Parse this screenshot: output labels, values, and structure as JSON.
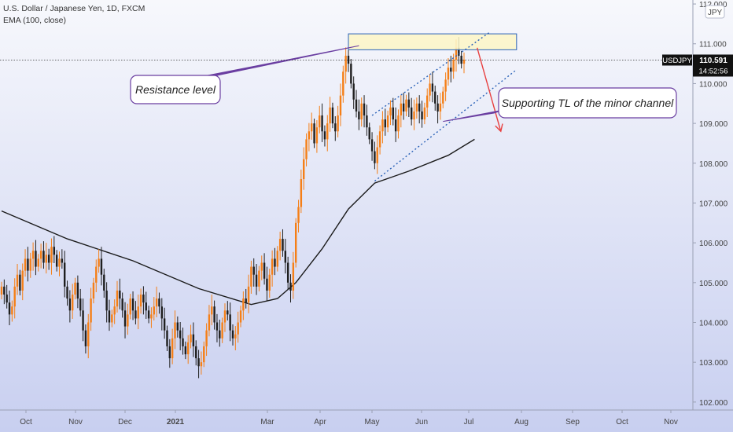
{
  "header": {
    "symbol_title": "U.S. Dollar / Japanese Yen, 1D, FXCM",
    "indicator": "EMA (100, close)"
  },
  "price_scale": {
    "currency_badge": "JPY",
    "ticks": [
      "102.000",
      "103.000",
      "104.000",
      "105.000",
      "106.000",
      "107.000",
      "108.000",
      "109.000",
      "110.000",
      "111.000",
      "112.000"
    ]
  },
  "last_price": {
    "symbol": "USDJPY",
    "price": "110.591",
    "countdown": "14:52:56"
  },
  "chart_data": {
    "type": "candlestick",
    "x_ticks": [
      "Oct",
      "Nov",
      "Dec",
      "2021",
      "Mar",
      "Apr",
      "May",
      "Jun",
      "Jul",
      "Aug",
      "Sep",
      "Oct",
      "Nov"
    ],
    "ylim": [
      101.8,
      112.1
    ],
    "current_price": 110.591,
    "closes": [
      104.9,
      104.7,
      104.5,
      104.2,
      104.4,
      104.9,
      105.2,
      104.8,
      105.3,
      105.6,
      105.3,
      105.6,
      105.8,
      105.4,
      105.6,
      105.8,
      105.5,
      105.7,
      105.5,
      105.9,
      105.7,
      105.4,
      105.6,
      105.5,
      104.9,
      104.6,
      104.3,
      104.7,
      105.0,
      104.6,
      104.3,
      103.8,
      103.4,
      104.0,
      104.6,
      105.0,
      105.4,
      105.6,
      105.2,
      104.8,
      104.3,
      104.0,
      104.2,
      104.4,
      104.8,
      104.6,
      104.3,
      103.9,
      104.2,
      104.6,
      104.3,
      104.1,
      104.4,
      104.7,
      104.5,
      104.3,
      104.1,
      104.2,
      104.4,
      104.6,
      104.4,
      104.1,
      103.8,
      103.4,
      103.1,
      103.6,
      104.0,
      103.8,
      103.6,
      103.4,
      103.2,
      103.5,
      103.7,
      103.4,
      103.1,
      102.9,
      103.0,
      103.4,
      103.8,
      104.2,
      104.4,
      104.0,
      103.8,
      103.6,
      104.0,
      104.3,
      104.2,
      103.8,
      103.6,
      103.7,
      104.0,
      104.3,
      104.6,
      104.5,
      104.9,
      105.4,
      105.2,
      104.9,
      105.3,
      105.5,
      105.1,
      104.8,
      105.2,
      105.6,
      105.4,
      105.8,
      106.1,
      105.8,
      105.5,
      105.0,
      104.8,
      105.5,
      106.5,
      106.9,
      107.6,
      108.1,
      108.6,
      108.8,
      109.0,
      108.5,
      108.9,
      109.2,
      108.8,
      108.6,
      109.0,
      109.4,
      109.0,
      108.8,
      109.2,
      109.7,
      110.3,
      110.7,
      110.5,
      110.0,
      109.6,
      109.3,
      109.1,
      109.5,
      109.2,
      108.9,
      108.6,
      108.3,
      108.0,
      108.4,
      108.8,
      109.1,
      108.9,
      109.2,
      109.4,
      109.1,
      108.8,
      109.2,
      109.5,
      109.3,
      109.6,
      109.4,
      109.1,
      109.3,
      109.5,
      109.3,
      109.1,
      109.4,
      109.7,
      110.0,
      109.8,
      109.5,
      109.3,
      109.5,
      109.8,
      110.1,
      110.4,
      110.3,
      110.6,
      110.9,
      110.7,
      110.5,
      110.6
    ],
    "ema": [
      {
        "x": 0,
        "y": 106.8
      },
      {
        "x": 25,
        "y": 106.1
      },
      {
        "x": 50,
        "y": 105.55
      },
      {
        "x": 75,
        "y": 104.85
      },
      {
        "x": 95,
        "y": 104.45
      },
      {
        "x": 105,
        "y": 104.6
      },
      {
        "x": 112,
        "y": 105.0
      },
      {
        "x": 122,
        "y": 105.85
      },
      {
        "x": 132,
        "y": 106.85
      },
      {
        "x": 142,
        "y": 107.5
      },
      {
        "x": 155,
        "y": 107.8
      },
      {
        "x": 170,
        "y": 108.2
      },
      {
        "x": 180,
        "y": 108.6
      }
    ],
    "annotations": [
      {
        "type": "rectangle",
        "label": "Resistance level",
        "x0": 132,
        "x1": 196,
        "y0": 110.85,
        "y1": 111.25
      },
      {
        "type": "channel",
        "label": "Supporting TL of the minor channel",
        "upper": {
          "x0": 141,
          "y0": 109.2,
          "x1": 186,
          "y1": 111.3
        },
        "lower": {
          "x0": 142,
          "y0": 107.55,
          "x1": 196,
          "y1": 110.35
        }
      },
      {
        "type": "arrow",
        "color": "#e84040",
        "x0": 181,
        "y0": 110.9,
        "x1": 190,
        "y1": 108.8
      }
    ],
    "callouts": [
      {
        "text": "Resistance level",
        "anchor_x": 136,
        "anchor_y": 110.95,
        "box_x": 166,
        "box_y": 96,
        "w": 114,
        "h": 36
      },
      {
        "text": "Supporting TL of the minor channel",
        "anchor_x": 168,
        "anchor_y": 109.05,
        "box_x": 634,
        "box_y": 112,
        "w": 226,
        "h": 38
      }
    ],
    "colors": {
      "up": "#f57f17",
      "down": "#1f1f1f",
      "ema": "#1a1a1a",
      "zone_fill": "#fdf6c6",
      "zone_stroke": "#2a62b8",
      "channel": "#2a62b8",
      "callout_stroke": "#6a3ea1",
      "callout_fill": "#ffffff"
    }
  }
}
